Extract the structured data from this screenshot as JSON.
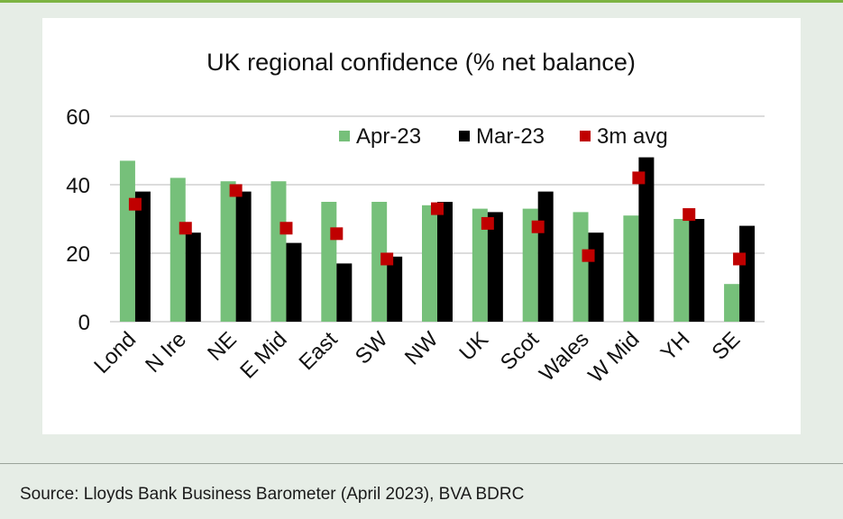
{
  "chart_data": {
    "type": "bar",
    "title": "UK regional confidence (% net balance)",
    "categories": [
      "Lond",
      "N Ire",
      "NE",
      "E Mid",
      "East",
      "SW",
      "NW",
      "UK",
      "Scot",
      "Wales",
      "W Mid",
      "YH",
      "SE"
    ],
    "series": [
      {
        "name": "Apr-23",
        "kind": "bar",
        "color": "#76c07a",
        "values": [
          47,
          42,
          41,
          41,
          35,
          35,
          34,
          33,
          33,
          32,
          31,
          30,
          11
        ]
      },
      {
        "name": "Mar-23",
        "kind": "bar",
        "color": "#000000",
        "values": [
          38,
          26,
          38,
          23,
          17,
          19,
          35,
          32,
          38,
          26,
          48,
          30,
          28
        ]
      },
      {
        "name": "3m avg",
        "kind": "marker",
        "color": "#c00000",
        "values": [
          34.3,
          27.3,
          38.3,
          27.3,
          25.7,
          18.3,
          33.0,
          28.7,
          27.7,
          19.3,
          42.0,
          31.3,
          18.3
        ]
      }
    ],
    "ylim": [
      0,
      60
    ],
    "yticks": [
      0,
      20,
      40,
      60
    ],
    "grid": true,
    "legend": "top-right"
  },
  "source": "Source: Lloyds Bank Business Barometer (April 2023), BVA BDRC"
}
